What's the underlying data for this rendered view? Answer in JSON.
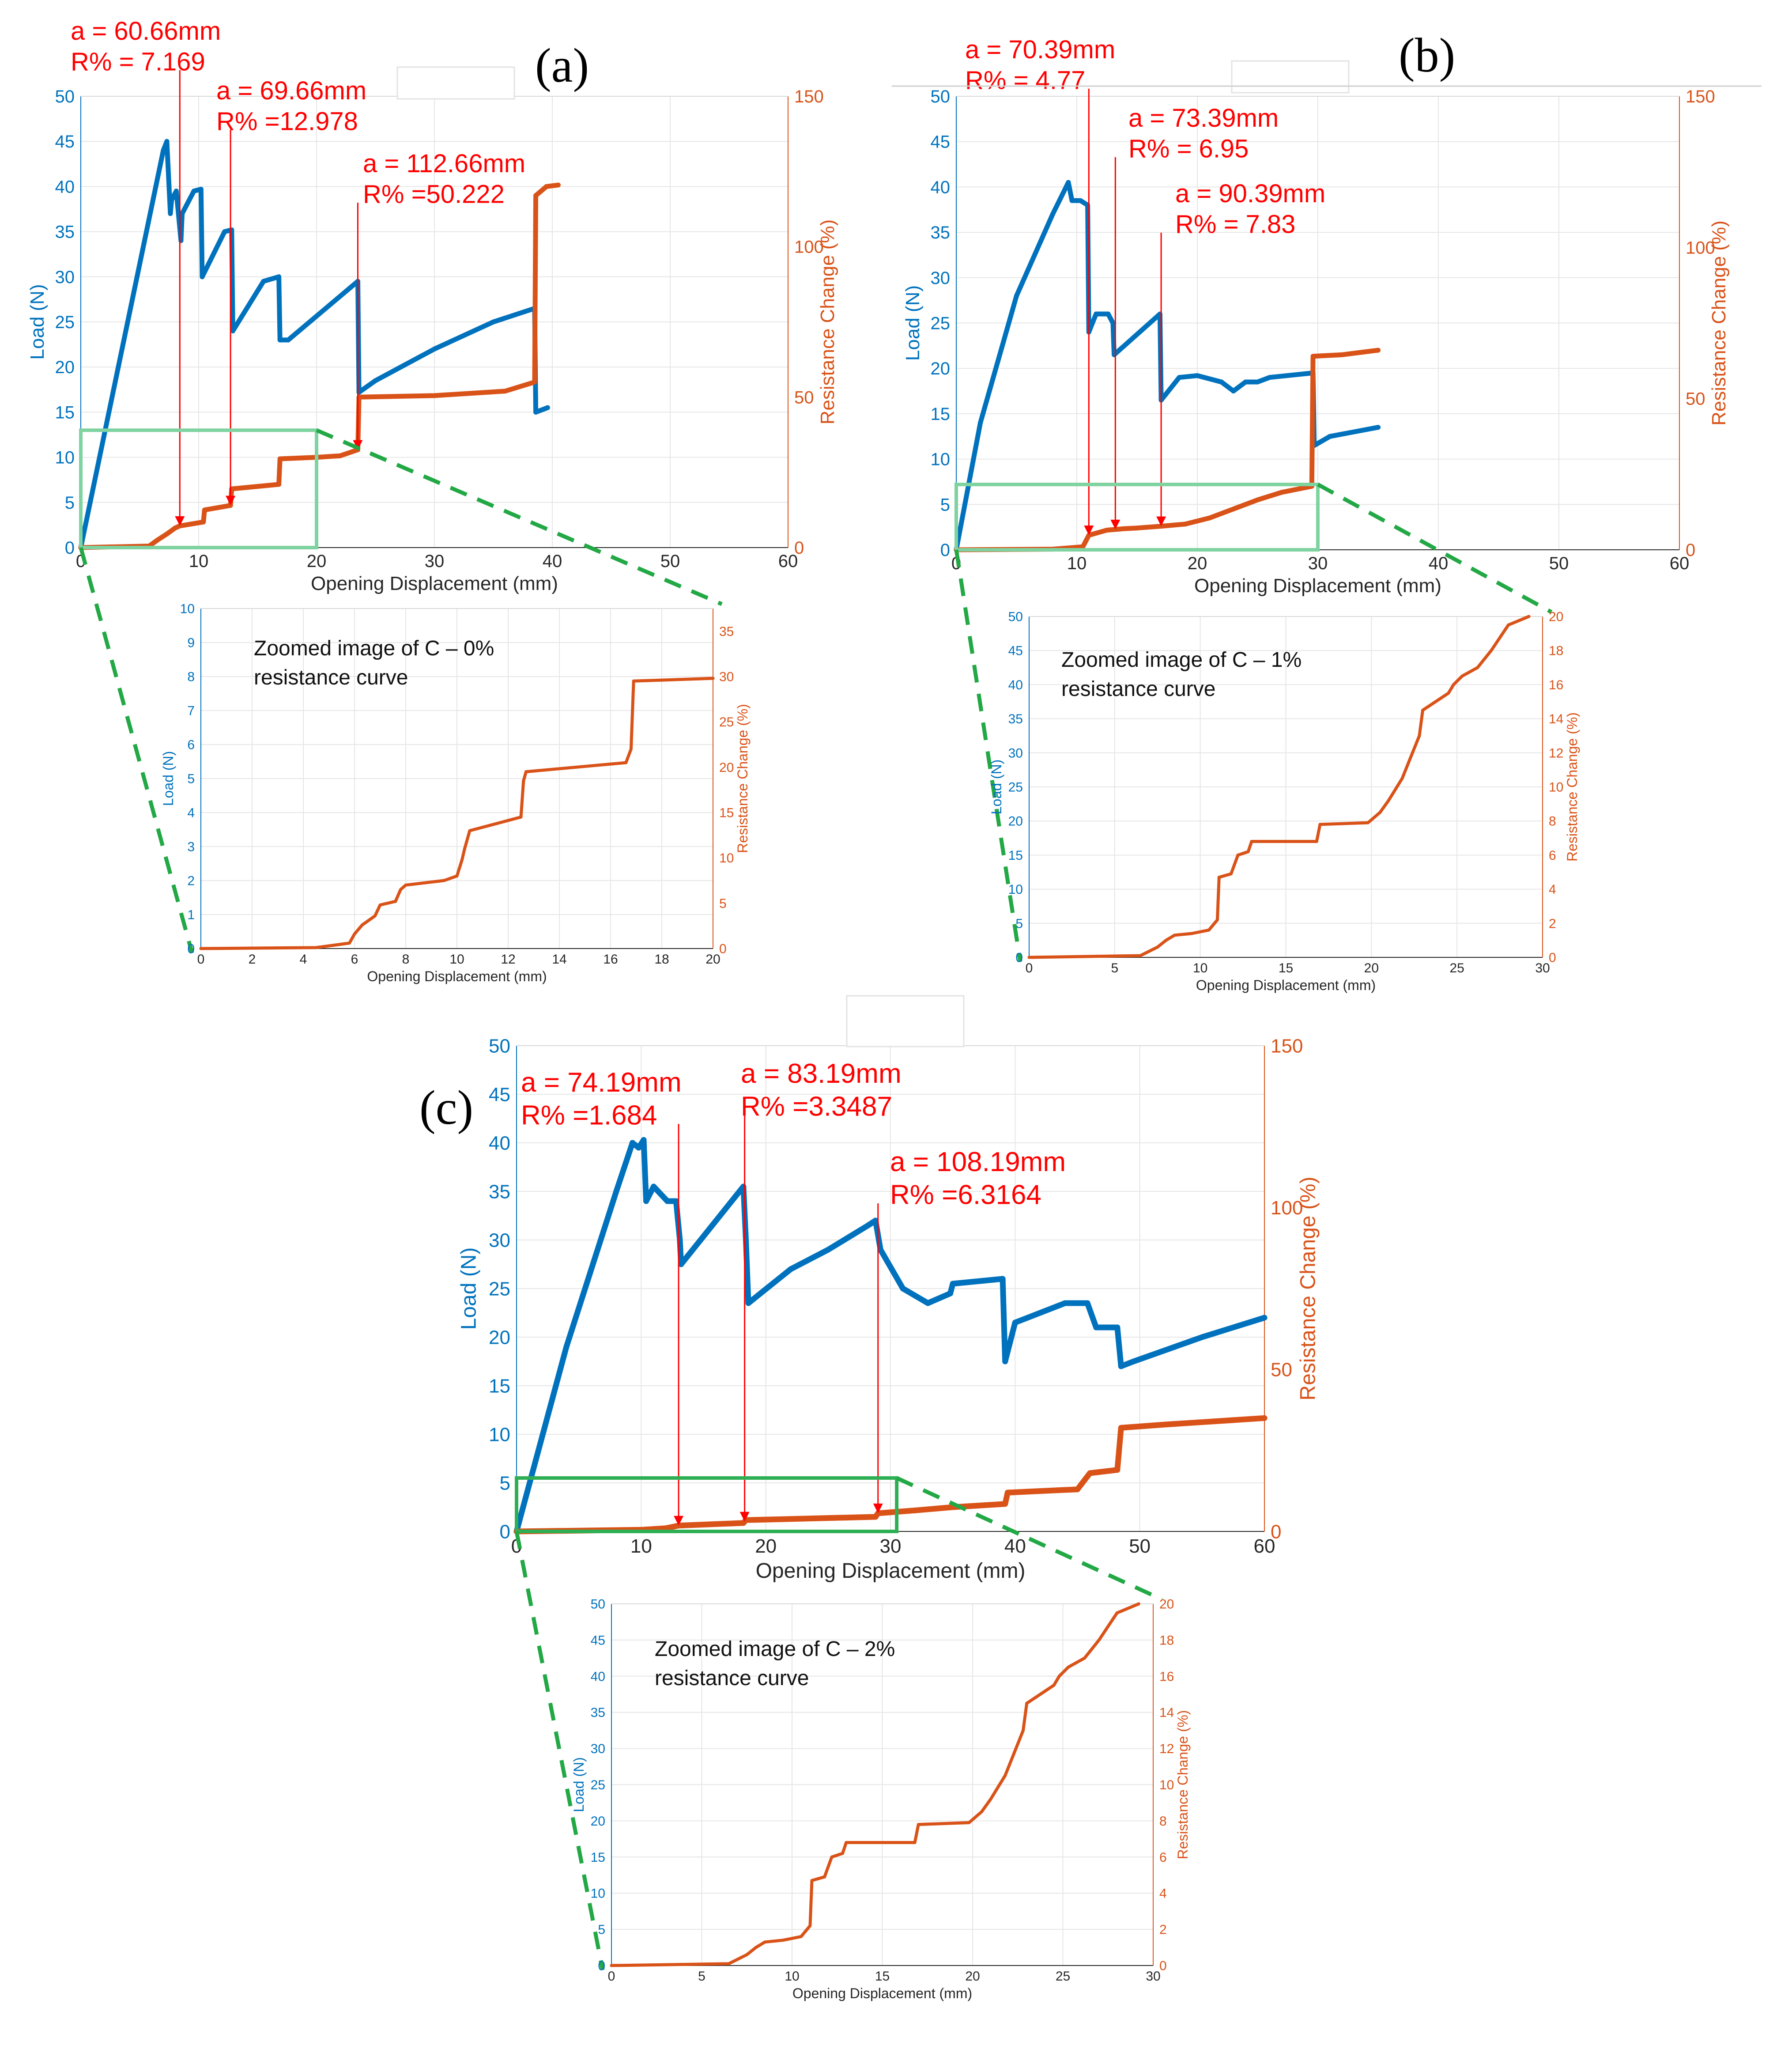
{
  "colors": {
    "load": "#0072BD",
    "resistance": "#D95319",
    "annotation": "#FF0000",
    "grid": "#E6E6E6",
    "zoom_box_light": "#7FD3A0",
    "zoom_box": "#2EAF54",
    "zoom_dash": "#22A845"
  },
  "chart_data": [
    {
      "id": "a",
      "type": "line",
      "panel_label": "(a)",
      "xlabel": "Opening Displacement (mm)",
      "ylabel": "Load (N)",
      "y2label": "Resistance Change (%)",
      "xlim": [
        0,
        60
      ],
      "ylim": [
        0,
        50
      ],
      "y2lim": [
        0,
        150
      ],
      "xticks": [
        "0",
        "10",
        "20",
        "30",
        "40",
        "50",
        "60"
      ],
      "yticks": [
        "0",
        "5",
        "10",
        "15",
        "20",
        "25",
        "30",
        "35",
        "40",
        "45",
        "50"
      ],
      "y2ticks": [
        "0",
        "50",
        "100",
        "150"
      ],
      "series": [
        {
          "name": "Load",
          "axis": "left",
          "x": [
            0,
            7.0,
            7.3,
            7.6,
            7.7,
            8.1,
            8.5,
            8.6,
            9.6,
            10.2,
            10.3,
            12.2,
            12.8,
            12.9,
            15.5,
            16.8,
            16.9,
            17.6,
            23.5,
            23.6,
            25,
            30,
            35,
            38.5,
            38.6,
            39.6
          ],
          "y": [
            0,
            44.0,
            45.0,
            37.0,
            38.5,
            39.5,
            34.0,
            37.0,
            39.5,
            39.7,
            30.0,
            35.0,
            35.2,
            24.0,
            29.5,
            30.0,
            23.0,
            23.0,
            29.5,
            17.2,
            18.5,
            22.0,
            25.0,
            26.5,
            15.0,
            15.5
          ]
        },
        {
          "name": "Resistance Change",
          "axis": "right",
          "x": [
            0,
            5.8,
            6.5,
            7.3,
            8.0,
            8.4,
            10.4,
            10.5,
            12.7,
            12.8,
            16.8,
            16.9,
            20,
            22,
            23.5,
            23.6,
            30,
            36,
            38.5,
            38.6,
            39.5,
            40.5
          ],
          "y": [
            0,
            0.5,
            2.5,
            4.5,
            6.5,
            7.2,
            8.5,
            12.5,
            14.0,
            19.5,
            21.0,
            29.5,
            30.0,
            30.5,
            32.5,
            50.0,
            50.5,
            52.0,
            55.0,
            117.0,
            120.0,
            120.5
          ]
        }
      ],
      "annotations": [
        {
          "x": 8.4,
          "line1": "a = 60.66mm",
          "line2": "R% = 7.169"
        },
        {
          "x": 12.7,
          "line1": "a = 69.66mm",
          "line2": "R% =12.978"
        },
        {
          "x": 23.5,
          "line1": "a = 112.66mm",
          "line2": "R% =50.222"
        }
      ],
      "zoom_box": {
        "x": [
          0,
          20
        ],
        "y": [
          0,
          13
        ]
      }
    },
    {
      "id": "a-zoom",
      "type": "line",
      "title": "Zoomed image of C – 0%",
      "title2": "resistance curve",
      "xlabel": "Opening Displacement (mm)",
      "ylabel": "Load (N)",
      "y2label": "Resistance Change (%)",
      "xlim": [
        0,
        20
      ],
      "ylim": [
        0,
        10
      ],
      "y2lim": [
        0,
        37.5
      ],
      "xticks": [
        "0",
        "2",
        "4",
        "6",
        "8",
        "10",
        "12",
        "14",
        "16",
        "18",
        "20"
      ],
      "yticks": [
        "0",
        "1",
        "2",
        "3",
        "4",
        "5",
        "6",
        "7",
        "8",
        "9",
        "10"
      ],
      "y2ticks": [
        "0",
        "5",
        "10",
        "15",
        "20",
        "25",
        "30",
        "35"
      ],
      "series": [
        {
          "name": "Resistance Change",
          "axis": "right",
          "x": [
            0,
            4.5,
            5.8,
            6.0,
            6.3,
            6.8,
            7.0,
            7.6,
            7.8,
            8.0,
            9.5,
            10.0,
            10.2,
            10.3,
            10.5,
            12.5,
            12.6,
            12.7,
            16.6,
            16.8,
            16.9,
            20
          ],
          "y": [
            0,
            0.1,
            0.6,
            1.6,
            2.6,
            3.6,
            4.8,
            5.2,
            6.5,
            7.0,
            7.5,
            8.0,
            9.8,
            11.0,
            13.0,
            14.5,
            18.5,
            19.5,
            20.5,
            22.0,
            29.5,
            29.8
          ]
        }
      ]
    },
    {
      "id": "b",
      "type": "line",
      "panel_label": "(b)",
      "xlabel": "Opening Displacement (mm)",
      "ylabel": "Load (N)",
      "y2label": "Resistance Change (%)",
      "xlim": [
        0,
        60
      ],
      "ylim": [
        0,
        50
      ],
      "y2lim": [
        0,
        150
      ],
      "xticks": [
        "0",
        "10",
        "20",
        "30",
        "40",
        "50",
        "60"
      ],
      "yticks": [
        "0",
        "5",
        "10",
        "15",
        "20",
        "25",
        "30",
        "35",
        "40",
        "45",
        "50"
      ],
      "y2ticks": [
        "0",
        "50",
        "100",
        "150"
      ],
      "series": [
        {
          "name": "Load",
          "axis": "left",
          "x": [
            0,
            2,
            5,
            8,
            9.3,
            9.6,
            10.3,
            10.9,
            11.0,
            11.6,
            12.6,
            13.0,
            13.1,
            16.9,
            17.0,
            18.5,
            20,
            22,
            23,
            24,
            25,
            26,
            29.6,
            29.7,
            31,
            35
          ],
          "y": [
            0,
            14,
            28,
            37,
            40.5,
            38.5,
            38.5,
            38.0,
            24.0,
            26.0,
            26.0,
            25.0,
            21.5,
            26.0,
            16.5,
            19.0,
            19.2,
            18.5,
            17.5,
            18.5,
            18.5,
            19.0,
            19.5,
            11.5,
            12.5,
            13.5
          ]
        },
        {
          "name": "Resistance Change",
          "axis": "right",
          "x": [
            0,
            8,
            10.5,
            11.0,
            12.5,
            14,
            15,
            17,
            19,
            21,
            23,
            25,
            27,
            29.5,
            29.6,
            32,
            35
          ],
          "y": [
            0,
            0.2,
            1.0,
            4.8,
            6.5,
            7.0,
            7.2,
            7.8,
            8.5,
            10.5,
            13.5,
            16.5,
            19.0,
            21.0,
            64.0,
            64.5,
            66.0
          ]
        }
      ],
      "annotations": [
        {
          "x": 11.0,
          "line1": "a = 70.39mm",
          "line2": "R% = 4.77"
        },
        {
          "x": 13.2,
          "line1": "a = 73.39mm",
          "line2": "R% = 6.95"
        },
        {
          "x": 17.0,
          "line1": "a = 90.39mm",
          "line2": "R% = 7.83"
        }
      ],
      "zoom_box": {
        "x": [
          0,
          30
        ],
        "y": [
          0,
          7.2
        ]
      }
    },
    {
      "id": "b-zoom",
      "type": "line",
      "title": "Zoomed image of C – 1%",
      "title2": "resistance curve",
      "xlabel": "Opening Displacement (mm)",
      "ylabel": "Load (N)",
      "y2label": "Resistance Change (%)",
      "xlim": [
        0,
        30
      ],
      "ylim": [
        0,
        50
      ],
      "y2lim": [
        0,
        20
      ],
      "xticks": [
        "0",
        "5",
        "10",
        "15",
        "20",
        "25",
        "30"
      ],
      "yticks": [
        "0",
        "5",
        "10",
        "15",
        "20",
        "25",
        "30",
        "35",
        "40",
        "45",
        "50"
      ],
      "y2ticks": [
        "0",
        "2",
        "4",
        "6",
        "8",
        "10",
        "12",
        "14",
        "16",
        "18",
        "20"
      ],
      "series": [
        {
          "name": "Resistance Change",
          "axis": "right",
          "x": [
            0,
            6.5,
            7.5,
            8.0,
            8.5,
            9.5,
            10.5,
            11.0,
            11.1,
            11.8,
            12.2,
            12.8,
            13.0,
            16.8,
            17.0,
            19.8,
            20.5,
            21.0,
            21.8,
            22.2,
            22.8,
            23.0,
            24.5,
            24.8,
            25.3,
            26.2,
            27.0,
            28.0,
            29.2
          ],
          "y": [
            0,
            0.1,
            0.6,
            1.0,
            1.3,
            1.4,
            1.6,
            2.2,
            4.7,
            4.9,
            6.0,
            6.2,
            6.8,
            6.8,
            7.8,
            7.9,
            8.5,
            9.2,
            10.5,
            11.5,
            13.0,
            14.5,
            15.5,
            16.0,
            16.5,
            17.0,
            18.0,
            19.5,
            20.0
          ]
        }
      ]
    },
    {
      "id": "c",
      "type": "line",
      "panel_label": "(c)",
      "xlabel": "Opening Displacement (mm)",
      "ylabel": "Load (N)",
      "y2label": "Resistance Change (%)",
      "xlim": [
        0,
        60
      ],
      "ylim": [
        0,
        50
      ],
      "y2lim": [
        0,
        150
      ],
      "xticks": [
        "0",
        "10",
        "20",
        "30",
        "40",
        "50",
        "60"
      ],
      "yticks": [
        "0",
        "5",
        "10",
        "15",
        "20",
        "25",
        "30",
        "35",
        "40",
        "45",
        "50"
      ],
      "y2ticks": [
        "0",
        "50",
        "100",
        "150"
      ],
      "series": [
        {
          "name": "Load",
          "axis": "left",
          "x": [
            0,
            4,
            8,
            9.3,
            9.8,
            10.2,
            10.4,
            11,
            12.1,
            12.8,
            13.1,
            13.2,
            18.2,
            18.4,
            18.6,
            22,
            25,
            28.2,
            28.8,
            29.2,
            31,
            33,
            34.8,
            35,
            39.0,
            39.2,
            40,
            44,
            45.8,
            46.5,
            48.2,
            48.5,
            49.5,
            55,
            60
          ],
          "y": [
            0,
            19,
            35,
            40.0,
            39.5,
            40.3,
            34.0,
            35.5,
            34.0,
            34.0,
            30.0,
            27.5,
            35.5,
            30.0,
            23.5,
            27.0,
            29.0,
            31.5,
            32.0,
            29.0,
            25.0,
            23.5,
            24.5,
            25.5,
            26.0,
            17.5,
            21.5,
            23.5,
            23.5,
            21.0,
            21.0,
            17.0,
            17.5,
            20.0,
            22.0
          ]
        },
        {
          "name": "Resistance Change",
          "axis": "right",
          "x": [
            0,
            10,
            12,
            13,
            18.2,
            18.4,
            28.8,
            29.0,
            32,
            35,
            39.2,
            39.4,
            45,
            46,
            48.2,
            48.5,
            52,
            56,
            60
          ],
          "y": [
            0,
            0.5,
            1.0,
            1.8,
            2.6,
            3.5,
            4.5,
            5.6,
            6.5,
            7.5,
            8.5,
            12.0,
            13.0,
            18.0,
            19.0,
            32.0,
            33.0,
            34.0,
            35.0
          ]
        }
      ],
      "annotations": [
        {
          "x": 13.0,
          "line1": "a = 74.19mm",
          "line2": "R% =1.684"
        },
        {
          "x": 18.3,
          "line1": "a = 83.19mm",
          "line2": "R% =3.3487"
        },
        {
          "x": 29.0,
          "line1": "a = 108.19mm",
          "line2": "R% =6.3164"
        }
      ],
      "zoom_box": {
        "x": [
          0,
          30.5
        ],
        "y": [
          0,
          5.5
        ]
      }
    },
    {
      "id": "c-zoom",
      "type": "line",
      "title": "Zoomed image of C – 2%",
      "title2": "resistance curve",
      "xlabel": "Opening Displacement (mm)",
      "ylabel": "Load (N)",
      "y2label": "Resistance Change (%)",
      "xlim": [
        0,
        30
      ],
      "ylim": [
        0,
        50
      ],
      "y2lim": [
        0,
        20
      ],
      "xticks": [
        "0",
        "5",
        "10",
        "15",
        "20",
        "25",
        "30"
      ],
      "yticks": [
        "0",
        "5",
        "10",
        "15",
        "20",
        "25",
        "30",
        "35",
        "40",
        "45",
        "50"
      ],
      "y2ticks": [
        "0",
        "2",
        "4",
        "6",
        "8",
        "10",
        "12",
        "14",
        "16",
        "18",
        "20"
      ],
      "series": [
        {
          "name": "Resistance Change",
          "axis": "right",
          "x": [
            0,
            6.5,
            7.5,
            8.0,
            8.5,
            9.5,
            10.5,
            11.0,
            11.1,
            11.8,
            12.2,
            12.8,
            13.0,
            16.8,
            17.0,
            19.8,
            20.5,
            21.0,
            21.8,
            22.2,
            22.8,
            23.0,
            24.5,
            24.8,
            25.3,
            26.2,
            27.0,
            28.0,
            29.2
          ],
          "y": [
            0,
            0.1,
            0.6,
            1.0,
            1.3,
            1.4,
            1.6,
            2.2,
            4.7,
            4.9,
            6.0,
            6.2,
            6.8,
            6.8,
            7.8,
            7.9,
            8.5,
            9.2,
            10.5,
            11.5,
            13.0,
            14.5,
            15.5,
            16.0,
            16.5,
            17.0,
            18.0,
            19.5,
            20.0
          ]
        }
      ]
    }
  ]
}
